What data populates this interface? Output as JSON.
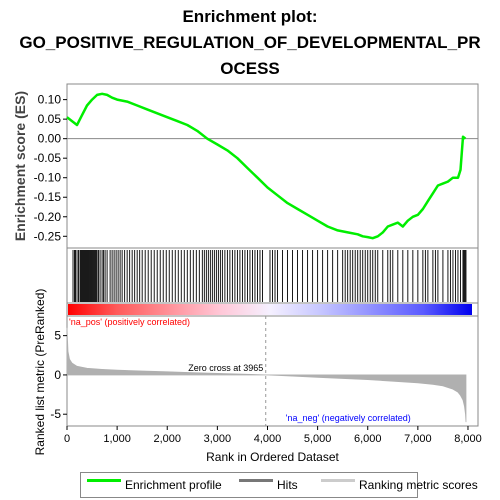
{
  "title_lines": [
    "Enrichment plot:",
    "GO_POSITIVE_REGULATION_OF_DEVELOPMENTAL_PR",
    "OCESS"
  ],
  "colors": {
    "enrichment": "#00ee00",
    "hits": "#000000",
    "ranking": "#b0b0b0",
    "pos_label": "#ff0000",
    "neg_label": "#0000ff",
    "heat_pos": "#ff0000",
    "heat_neg": "#0000ff",
    "zero_line": "#888888"
  },
  "legend": [
    {
      "label": "Enrichment profile",
      "swatch": "enrichment",
      "icon": "green-line"
    },
    {
      "label": "Hits",
      "swatch": "hits",
      "icon": "black-line"
    },
    {
      "label": "Ranking metric scores",
      "swatch": "ranking",
      "icon": "gray-line"
    }
  ],
  "chart_data": {
    "type": "line",
    "es_panel": {
      "ylabel": "Enrichment score (ES)",
      "ylim": [
        -0.28,
        0.14
      ],
      "yticks": [
        0.1,
        0.05,
        0.0,
        -0.05,
        -0.1,
        -0.15,
        -0.2,
        -0.25
      ],
      "ytick_labels": [
        "0.10",
        "0.05",
        "0.00",
        "-0.05",
        "-0.10",
        "-0.15",
        "-0.20",
        "-0.25"
      ],
      "series": [
        {
          "x": [
            0,
            100,
            200,
            300,
            400,
            500,
            600,
            700,
            800,
            900,
            1000,
            1200,
            1400,
            1600,
            1800,
            2000,
            2200,
            2400,
            2600,
            2800,
            3000,
            3200,
            3400,
            3600,
            3800,
            4000,
            4200,
            4400,
            4600,
            4800,
            5000,
            5200,
            5400,
            5600,
            5800,
            5900,
            6000,
            6100,
            6200,
            6300,
            6400,
            6500,
            6600,
            6700,
            6800,
            6900,
            7000,
            7100,
            7200,
            7300,
            7400,
            7500,
            7600,
            7700,
            7800,
            7850,
            7900,
            7950
          ],
          "y": [
            0.055,
            0.045,
            0.035,
            0.06,
            0.085,
            0.1,
            0.112,
            0.115,
            0.112,
            0.105,
            0.1,
            0.095,
            0.085,
            0.075,
            0.065,
            0.055,
            0.045,
            0.035,
            0.02,
            0.0,
            -0.015,
            -0.03,
            -0.05,
            -0.075,
            -0.1,
            -0.125,
            -0.145,
            -0.165,
            -0.18,
            -0.195,
            -0.21,
            -0.225,
            -0.235,
            -0.24,
            -0.245,
            -0.25,
            -0.252,
            -0.255,
            -0.25,
            -0.24,
            -0.225,
            -0.22,
            -0.215,
            -0.225,
            -0.21,
            -0.2,
            -0.195,
            -0.18,
            -0.16,
            -0.14,
            -0.12,
            -0.115,
            -0.11,
            -0.1,
            -0.1,
            -0.08,
            0.005,
            0.0
          ]
        }
      ]
    },
    "hits_panel": {
      "hit_ranks": [
        120,
        150,
        170,
        200,
        230,
        260,
        280,
        300,
        320,
        340,
        360,
        380,
        400,
        420,
        440,
        460,
        480,
        500,
        520,
        540,
        560,
        580,
        600,
        630,
        660,
        700,
        730,
        760,
        800,
        860,
        900,
        940,
        980,
        1020,
        1060,
        1100,
        1150,
        1200,
        1250,
        1300,
        1350,
        1400,
        1450,
        1500,
        1560,
        1620,
        1680,
        1740,
        1800,
        1860,
        1920,
        1980,
        2040,
        2100,
        2160,
        2220,
        2280,
        2340,
        2400,
        2460,
        2520,
        2580,
        2640,
        2700,
        2740,
        2780,
        2820,
        2860,
        2900,
        2940,
        2980,
        3020,
        3060,
        3100,
        3150,
        3200,
        3250,
        3300,
        3350,
        3400,
        3450,
        3500,
        3550,
        3600,
        3650,
        3700,
        3750,
        3800,
        3850,
        3900,
        4050,
        4100,
        4150,
        4200,
        4300,
        4400,
        4500,
        4600,
        4700,
        4800,
        4900,
        5000,
        5100,
        5200,
        5300,
        5400,
        5500,
        5550,
        5600,
        5650,
        5700,
        5750,
        5800,
        5850,
        5900,
        5950,
        6000,
        6050,
        6100,
        6150,
        6200,
        6300,
        6400,
        6450,
        6500,
        6600,
        6700,
        6800,
        6900,
        7000,
        7100,
        7150,
        7200,
        7300,
        7350,
        7400,
        7500,
        7600,
        7650,
        7700,
        7750,
        7800,
        7850,
        7900,
        7920,
        7940,
        7960
      ]
    },
    "ranking_panel": {
      "xlabel": "Rank in Ordered Dataset",
      "ylabel": "Ranked list metric (PreRanked)",
      "xlim": [
        0,
        8200
      ],
      "ylim": [
        -6.5,
        7.5
      ],
      "xticks": [
        0,
        1000,
        2000,
        3000,
        4000,
        5000,
        6000,
        7000,
        8000
      ],
      "xtick_labels": [
        "0",
        "1,000",
        "2,000",
        "3,000",
        "4,000",
        "5,000",
        "6,000",
        "7,000",
        "8,000"
      ],
      "yticks": [
        5,
        0,
        -5
      ],
      "ytick_labels": [
        "5",
        "0",
        "-5"
      ],
      "x": [
        0,
        20,
        50,
        100,
        200,
        400,
        700,
        1000,
        1500,
        2000,
        2500,
        3000,
        3500,
        3965,
        4500,
        5000,
        5500,
        6000,
        6500,
        7000,
        7300,
        7500,
        7700,
        7800,
        7850,
        7900,
        7930,
        7950,
        7960
      ],
      "y": [
        6.0,
        3.0,
        2.0,
        1.5,
        1.1,
        0.85,
        0.7,
        0.6,
        0.5,
        0.4,
        0.3,
        0.2,
        0.1,
        0.0,
        -0.15,
        -0.3,
        -0.45,
        -0.6,
        -0.8,
        -1.0,
        -1.2,
        -1.4,
        -1.8,
        -2.2,
        -2.6,
        -3.2,
        -4.0,
        -5.0,
        -6.0
      ],
      "zero_cross_label": "Zero cross at 3965",
      "zero_cross_rank": 3965,
      "pos_label": "'na_pos' (positively correlated)",
      "neg_label": "'na_neg' (negatively correlated)"
    }
  }
}
